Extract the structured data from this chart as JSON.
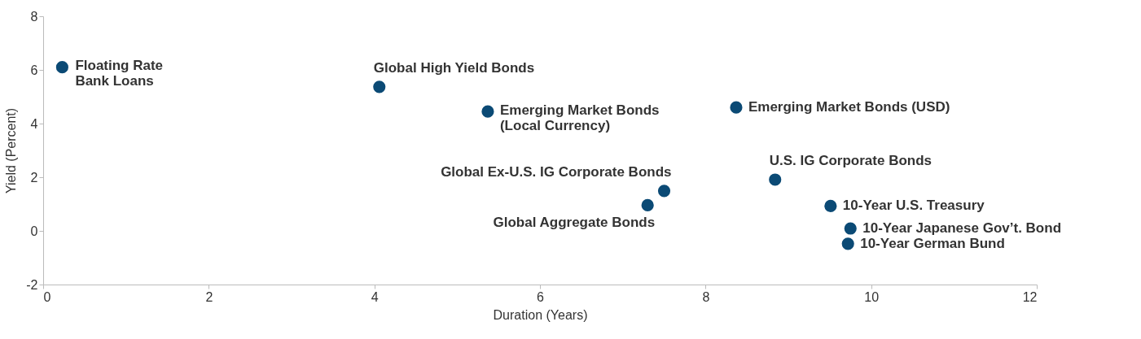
{
  "chart_data": {
    "type": "scatter",
    "xlabel": "Duration (Years)",
    "ylabel": "Yield (Percent)",
    "xlim": [
      0,
      12
    ],
    "xticks": [
      0,
      2,
      4,
      6,
      8,
      10,
      12
    ],
    "ylim": [
      -2,
      8
    ],
    "yticks": [
      -2,
      0,
      2,
      4,
      6,
      8
    ],
    "grid": false,
    "marker": "circle",
    "series": [
      {
        "name": "Floating Rate\nBank Loans",
        "color": "#0b4a75",
        "x": [
          0.23
        ],
        "values": [
          6.1
        ]
      },
      {
        "name": "Global High Yield Bonds",
        "color": "#0b4a75",
        "x": [
          4.06
        ],
        "values": [
          5.37
        ]
      },
      {
        "name": "Emerging Market Bonds\n(Local Currency)",
        "color": "#0b4a75",
        "x": [
          5.37
        ],
        "values": [
          4.45
        ]
      },
      {
        "name": "Emerging Market Bonds (USD)",
        "color": "#0b4a75",
        "x": [
          8.37
        ],
        "values": [
          4.6
        ]
      },
      {
        "name": "U.S. IG Corporate Bonds",
        "color": "#0b4a75",
        "x": [
          8.84
        ],
        "values": [
          1.91
        ]
      },
      {
        "name": "Global Ex-U.S. IG Corporate Bonds",
        "color": "#0b4a75",
        "x": [
          7.5
        ],
        "values": [
          1.49
        ]
      },
      {
        "name": "Global Aggregate Bonds",
        "color": "#0b4a75",
        "x": [
          7.3
        ],
        "values": [
          0.96
        ]
      },
      {
        "name": "10-Year U.S. Treasury",
        "color": "#0b4a75",
        "x": [
          9.51
        ],
        "values": [
          0.93
        ]
      },
      {
        "name": "10-Year Japanese Gov’t. Bond",
        "color": "#0b4a75",
        "x": [
          9.75
        ],
        "values": [
          0.09
        ]
      },
      {
        "name": "10-Year German Bund",
        "color": "#0b4a75",
        "x": [
          9.72
        ],
        "values": [
          -0.48
        ]
      }
    ]
  }
}
